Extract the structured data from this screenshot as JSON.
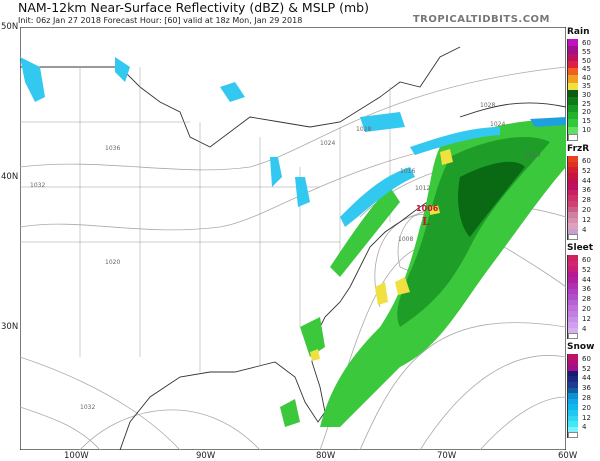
{
  "header": {
    "title": "NAM-12km Near-Surface Reflectivity (dBZ) & MSLP (mb)",
    "subtitle": "Init: 06z Jan 27 2018   Forecast Hour: [60]   valid at 18z Mon, Jan 29 2018",
    "brand": "TROPICALTIDBITS.COM"
  },
  "axes": {
    "lat_labels": [
      "50N",
      "40N",
      "30N"
    ],
    "lon_labels": [
      "100W",
      "90W",
      "80W",
      "70W",
      "60W"
    ]
  },
  "map": {
    "isobar_labels": [
      "1028",
      "1028",
      "1024",
      "1020",
      "1016",
      "1012",
      "1008",
      "1032",
      "1036",
      "1024",
      "1020",
      "1032"
    ],
    "low": {
      "symbol": "L",
      "pressure": "1006"
    },
    "colors": {
      "rain_light": "#3cc83c",
      "rain_mid": "#1e9e28",
      "rain_dark": "#0a6a14",
      "snow": "#33c8f0",
      "snow_dark": "#1ea0e0",
      "mix": "#f0e040",
      "low": "#cc1133"
    }
  },
  "legend": {
    "groups": [
      {
        "title": "Rain",
        "labels": [
          "60",
          "55",
          "50",
          "45",
          "40",
          "35",
          "30",
          "25",
          "20",
          "15",
          "10"
        ],
        "colors": [
          "#c010c0",
          "#a0108a",
          "#c01060",
          "#e02040",
          "#f06020",
          "#f0a020",
          "#f0e040",
          "#0a5a14",
          "#0e7a1c",
          "#169a24",
          "#22b22e",
          "#34c83c",
          "#60e060",
          "#ffffff"
        ]
      },
      {
        "title": "FrzR",
        "labels": [
          "60",
          "52",
          "44",
          "36",
          "28",
          "20",
          "12",
          "4"
        ],
        "colors": [
          "#e84020",
          "#e03020",
          "#d02030",
          "#c81440",
          "#c01050",
          "#c01060",
          "#c82060",
          "#d03068",
          "#d04070",
          "#c86088",
          "#d080a0",
          "#d890b0",
          "#e0a0c0",
          "#c8a0d0",
          "#ffffff"
        ]
      },
      {
        "title": "Sleet",
        "labels": [
          "60",
          "52",
          "44",
          "36",
          "28",
          "20",
          "12",
          "4"
        ],
        "colors": [
          "#d02060",
          "#d02870",
          "#c82078",
          "#b81890",
          "#b020a0",
          "#b030b0",
          "#b040c0",
          "#b050c8",
          "#b860d0",
          "#c070d8",
          "#c080e0",
          "#c890e8",
          "#d0a0f0",
          "#d8b0f0",
          "#ffffff"
        ]
      },
      {
        "title": "Snow",
        "labels": [
          "60",
          "52",
          "44",
          "36",
          "28",
          "20",
          "12",
          "4"
        ],
        "colors": [
          "#c0106a",
          "#b0107a",
          "#a0108a",
          "#1a1a70",
          "#1a2a80",
          "#203a90",
          "#1060a0",
          "#1090d0",
          "#10a8e8",
          "#10b8f0",
          "#20c8f0",
          "#30d8f0",
          "#40e8f8",
          "#80f0ff",
          "#ffffff"
        ]
      }
    ]
  }
}
